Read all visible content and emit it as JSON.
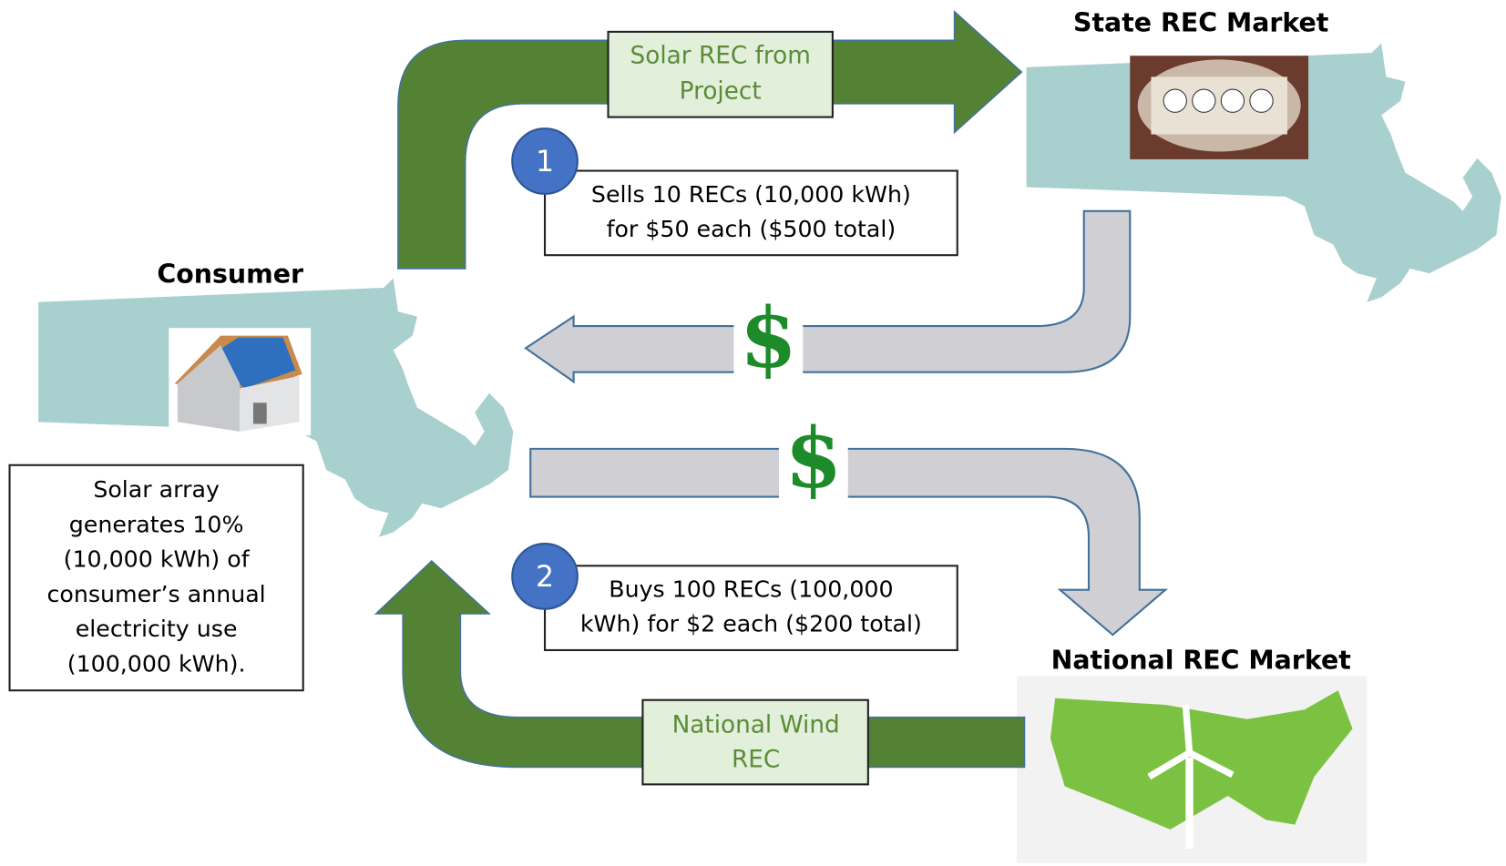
{
  "state_market": {
    "title": "State REC Market"
  },
  "consumer": {
    "title": "Consumer",
    "description": [
      "Solar array",
      "generates 10%",
      "(10,000 kWh) of",
      "consumer’s annual",
      "electricity use",
      "(100,000 kWh)."
    ]
  },
  "national_market": {
    "title": "National REC Market"
  },
  "flows": [
    {
      "label": [
        "Solar REC from",
        "Project"
      ]
    },
    {
      "step": "1",
      "text": [
        "Sells 10 RECs (10,000 kWh)",
        "for $50 each ($500 total)"
      ]
    },
    {
      "symbol": "$"
    },
    {
      "symbol": "$"
    },
    {
      "step": "2",
      "text": [
        "Buys 100 RECs (100,000",
        "kWh) for $2 each ($200 total)"
      ]
    },
    {
      "label": [
        "National Wind",
        "REC"
      ]
    }
  ]
}
